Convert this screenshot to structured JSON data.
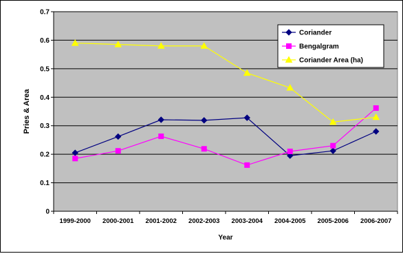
{
  "chart_data": {
    "type": "line",
    "categories": [
      "1999-2000",
      "2000-2001",
      "2001-2002",
      "2002-2003",
      "2003-2004",
      "2004-2005",
      "2005-2006",
      "2006-2007"
    ],
    "series": [
      {
        "name": "Coriander",
        "values": [
          0.205,
          0.262,
          0.321,
          0.319,
          0.328,
          0.195,
          0.212,
          0.28
        ],
        "color": "#000080",
        "marker": "diamond"
      },
      {
        "name": "Bengalgram",
        "values": [
          0.185,
          0.212,
          0.263,
          0.219,
          0.162,
          0.21,
          0.23,
          0.362
        ],
        "color": "#FF00FF",
        "marker": "square"
      },
      {
        "name": "Coriander Area (ha)",
        "values": [
          0.59,
          0.585,
          0.58,
          0.58,
          0.485,
          0.433,
          0.313,
          0.33
        ],
        "color": "#FFFF00",
        "marker": "triangle"
      }
    ],
    "xlabel": "Year",
    "ylabel": "Pries & Area",
    "ylim": [
      0,
      0.7
    ],
    "yticks": [
      0,
      0.1,
      0.2,
      0.3,
      0.4,
      0.5,
      0.6,
      0.7
    ],
    "ytick_labels": [
      "0",
      "0.1",
      "0.2",
      "0.3",
      "0.4",
      "0.5",
      "0.6",
      "0.7"
    ],
    "grid": true,
    "plot_background": "#C0C0C0",
    "legend_position": "top-right"
  }
}
